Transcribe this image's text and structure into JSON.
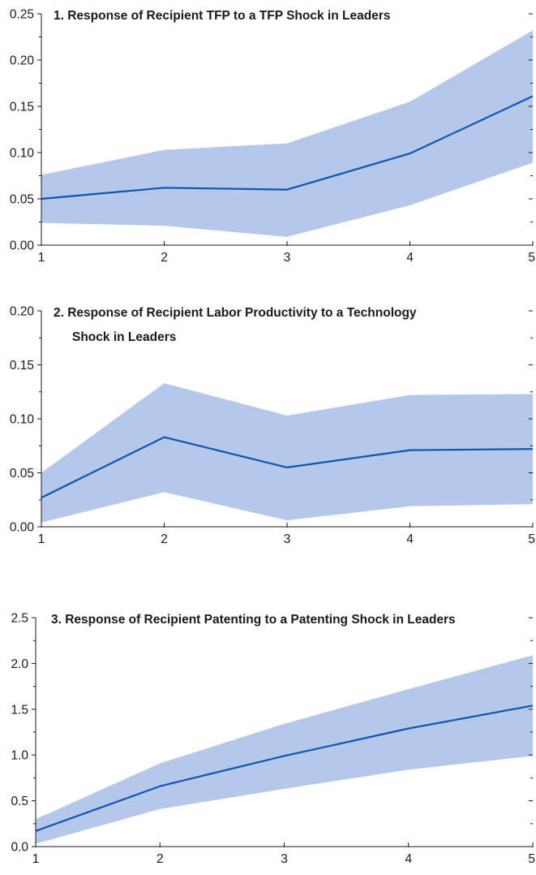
{
  "colors": {
    "band": "#b5c8ea",
    "line": "#1155b3",
    "text": "#1a1a1a"
  },
  "chart_data": [
    {
      "type": "area",
      "title_lines": [
        "1. Response of Recipient TFP to a TFP Shock in Leaders"
      ],
      "x": [
        1,
        2,
        3,
        4,
        5
      ],
      "x_tick_labels": [
        "1",
        "2",
        "3",
        "4",
        "5"
      ],
      "y_tick_labels": [
        "0.00",
        "0.05",
        "0.10",
        "0.15",
        "0.20",
        "0.25"
      ],
      "ylim": [
        0,
        0.25
      ],
      "xlim": [
        1,
        5
      ],
      "series": [
        {
          "values": [
            0.05,
            0.062,
            0.06,
            0.099,
            0.161
          ]
        }
      ],
      "band_upper": [
        0.076,
        0.103,
        0.11,
        0.155,
        0.232
      ],
      "band_lower": [
        0.024,
        0.021,
        0.009,
        0.043,
        0.089
      ]
    },
    {
      "type": "area",
      "title_lines": [
        "2. Response of Recipient Labor Productivity to a Technology",
        "Shock in Leaders"
      ],
      "x": [
        1,
        2,
        3,
        4,
        5
      ],
      "x_tick_labels": [
        "1",
        "2",
        "3",
        "4",
        "5"
      ],
      "y_tick_labels": [
        "0.00",
        "0.05",
        "0.10",
        "0.15",
        "0.20"
      ],
      "ylim": [
        0,
        0.2
      ],
      "xlim": [
        1,
        5
      ],
      "series": [
        {
          "values": [
            0.027,
            0.083,
            0.055,
            0.071,
            0.072
          ]
        }
      ],
      "band_upper": [
        0.05,
        0.133,
        0.103,
        0.122,
        0.123
      ],
      "band_lower": [
        0.004,
        0.032,
        0.006,
        0.019,
        0.021
      ]
    },
    {
      "type": "area",
      "title_lines": [
        "3. Response of Recipient Patenting to a Patenting Shock in Leaders"
      ],
      "x": [
        1,
        2,
        3,
        4,
        5
      ],
      "x_tick_labels": [
        "1",
        "2",
        "3",
        "4",
        "5"
      ],
      "y_tick_labels": [
        "0.0",
        "0.5",
        "1.0",
        "1.5",
        "2.0",
        "2.5"
      ],
      "ylim": [
        0,
        2.5
      ],
      "xlim": [
        1,
        5
      ],
      "series": [
        {
          "values": [
            0.17,
            0.66,
            0.99,
            1.29,
            1.54
          ]
        }
      ],
      "band_upper": [
        0.3,
        0.91,
        1.34,
        1.72,
        2.09
      ],
      "band_lower": [
        0.03,
        0.41,
        0.63,
        0.84,
        0.99
      ]
    }
  ]
}
